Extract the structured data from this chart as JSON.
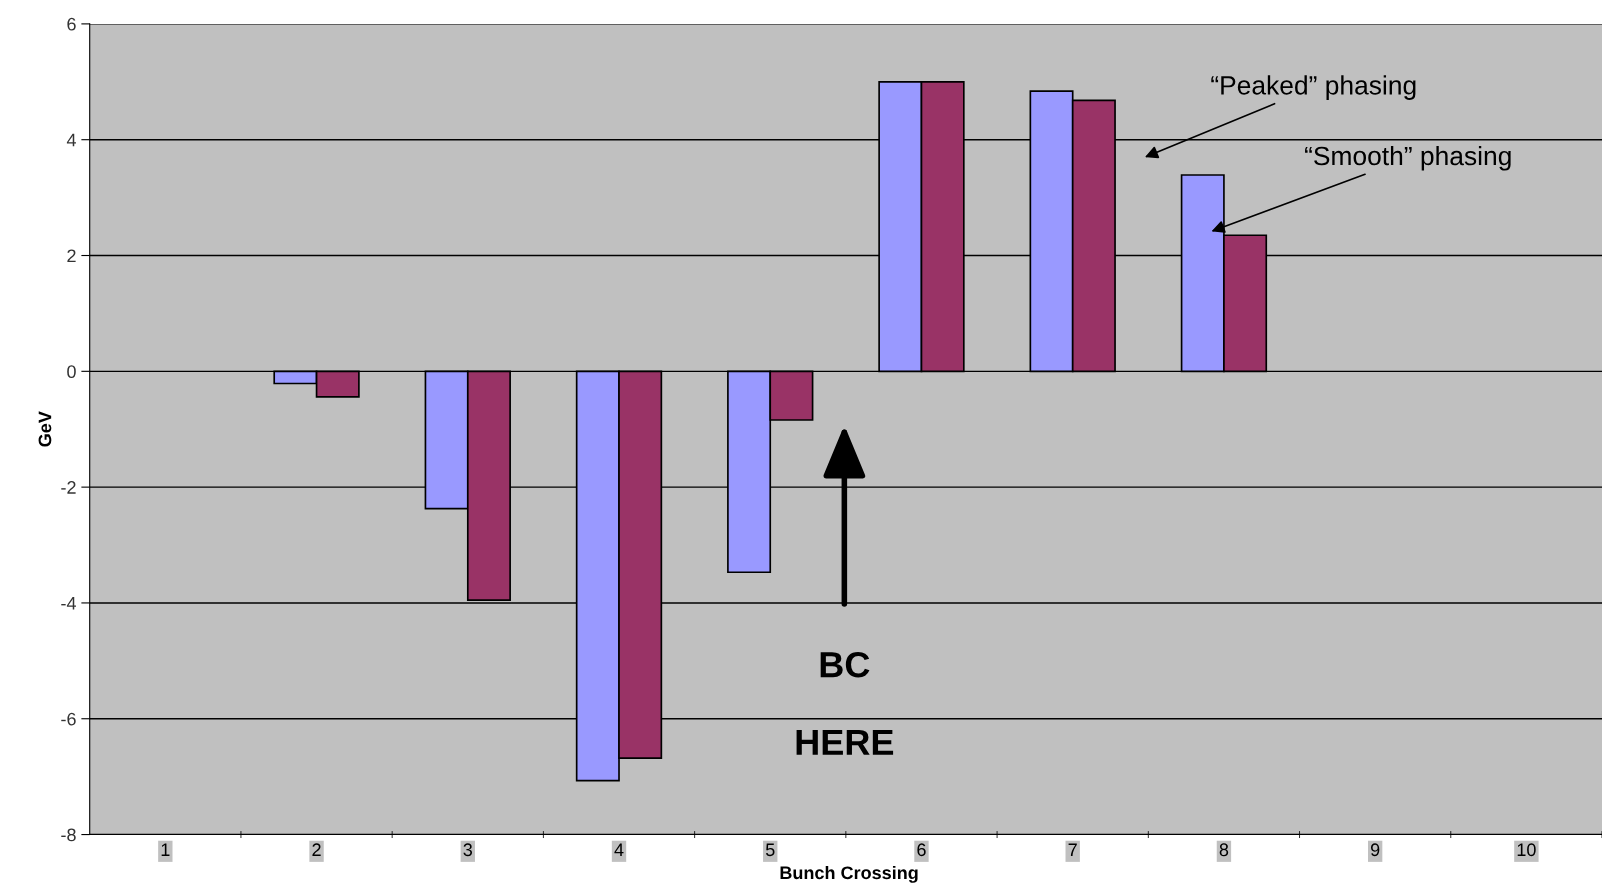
{
  "chart_data": {
    "type": "bar",
    "xlabel": "Bunch Crossing",
    "ylabel": "GeV",
    "categories": [
      "1",
      "2",
      "3",
      "4",
      "5",
      "6",
      "7",
      "8",
      "9",
      "10"
    ],
    "series": [
      {
        "color": "#9999ff",
        "values": [
          null,
          -0.21,
          -2.37,
          -7.07,
          -3.47,
          5.0,
          4.84,
          3.39,
          null,
          null
        ]
      },
      {
        "color": "#993366",
        "values": [
          null,
          -0.44,
          -3.95,
          -6.68,
          -0.84,
          5.0,
          4.68,
          2.35,
          null,
          null
        ]
      }
    ],
    "ylim": [
      -8,
      6
    ],
    "yticks": [
      -8,
      -6,
      -4,
      -2,
      0,
      2,
      4,
      6
    ],
    "grid": "y",
    "legend": false,
    "annotations": [
      "“Peaked” phasing",
      "“Smooth” phasing",
      "BC",
      "HERE"
    ]
  }
}
